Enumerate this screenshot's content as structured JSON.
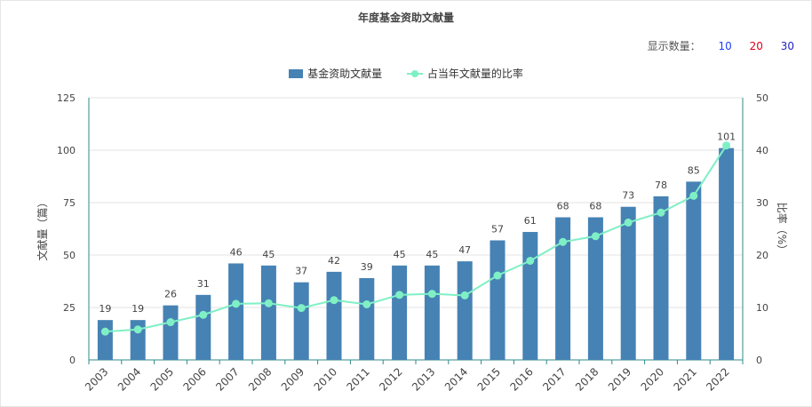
{
  "chart_data": {
    "type": "bar",
    "title": "年度基金资助文献量",
    "categories": [
      "2003",
      "2004",
      "2005",
      "2006",
      "2007",
      "2008",
      "2009",
      "2010",
      "2011",
      "2012",
      "2013",
      "2014",
      "2015",
      "2016",
      "2017",
      "2018",
      "2019",
      "2020",
      "2021",
      "2022"
    ],
    "series": [
      {
        "name": "基金资助文献量",
        "type": "bar",
        "axis": "left",
        "values": [
          19,
          19,
          26,
          31,
          46,
          45,
          37,
          42,
          39,
          45,
          45,
          47,
          57,
          61,
          68,
          68,
          73,
          78,
          85,
          101
        ]
      },
      {
        "name": "占当年文献量的比率",
        "type": "line",
        "axis": "right",
        "values": [
          5.4,
          5.8,
          7.2,
          8.6,
          10.7,
          10.8,
          9.9,
          11.4,
          10.6,
          12.4,
          12.6,
          12.3,
          16.1,
          18.9,
          22.5,
          23.6,
          26.2,
          28.1,
          31.3,
          40.9
        ]
      }
    ],
    "ylabel": "文献量（篇）",
    "y2label": "比率（%）",
    "ylim": [
      0,
      125
    ],
    "y2lim": [
      0,
      50
    ],
    "yticks": [
      "0",
      "25",
      "50",
      "75",
      "100",
      "125"
    ],
    "y2ticks": [
      "0",
      "10",
      "20",
      "30",
      "40",
      "50"
    ],
    "grid": true,
    "legend": "top-center",
    "colors": {
      "bar": "#4682b4",
      "line": "#7ff0c5"
    }
  },
  "count_selector": {
    "label": "显示数量：",
    "options": [
      "10",
      "20",
      "30"
    ]
  }
}
